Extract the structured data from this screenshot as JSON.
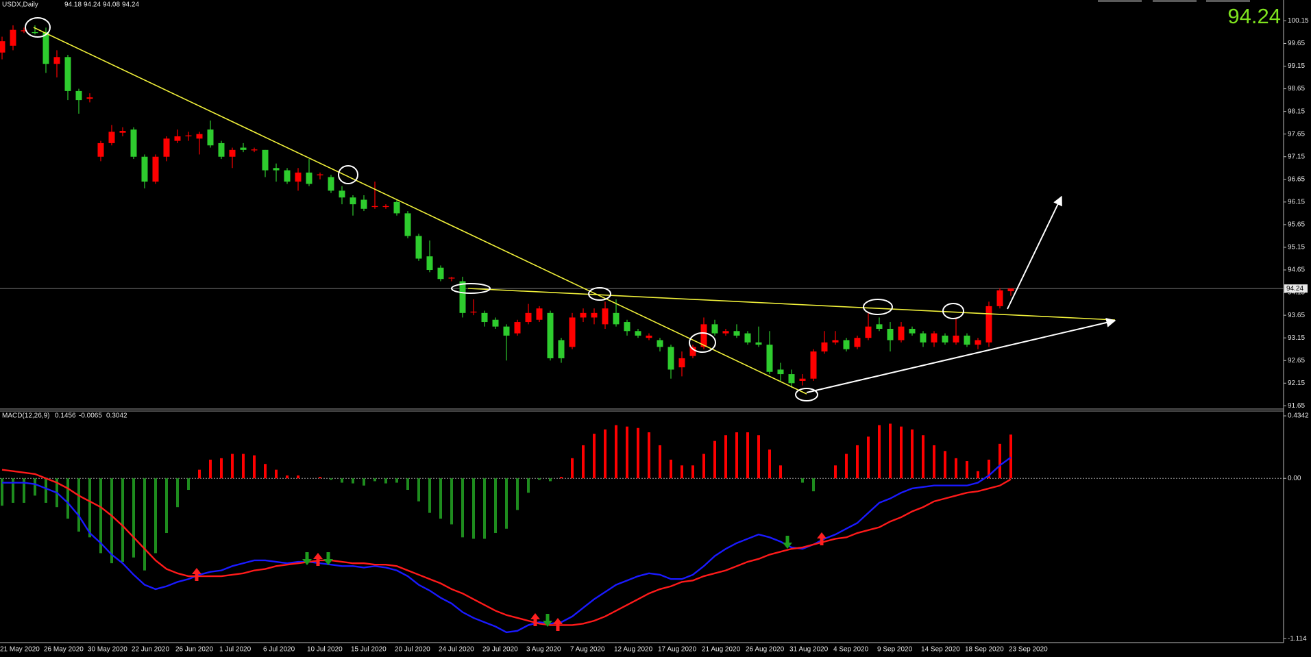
{
  "chart_data": [
    {
      "type": "candlestick",
      "title": "USDX,Daily",
      "categories": [
        "21 May 2020",
        null,
        null,
        null,
        "26 May 2020",
        null,
        null,
        null,
        "30 May 2020",
        null,
        null,
        null,
        "22 Jun 2020",
        null,
        null,
        null,
        "26 Jun 2020",
        null,
        null,
        null,
        "1 Jul 2020",
        null,
        null,
        null,
        "6 Jul 2020",
        null,
        null,
        null,
        "10 Jul 2020",
        null,
        null,
        null,
        "15 Jul 2020",
        null,
        null,
        null,
        "20 Jul 2020",
        null,
        null,
        null,
        "24 Jul 2020",
        null,
        null,
        null,
        "29 Jul 2020",
        null,
        null,
        null,
        "3 Aug 2020",
        null,
        null,
        null,
        "7 Aug 2020",
        null,
        null,
        null,
        "12 Aug 2020",
        null,
        null,
        null,
        "17 Aug 2020",
        null,
        null,
        null,
        "21 Aug 2020",
        null,
        null,
        null,
        "26 Aug 2020",
        null,
        null,
        null,
        "31 Aug 2020",
        null,
        null,
        null,
        "4 Sep 2020",
        null,
        null,
        null,
        "9 Sep 2020",
        null,
        null,
        null,
        "14 Sep 2020",
        null,
        null,
        null,
        "18 Sep 2020",
        null,
        null,
        null,
        "23 Sep 2020"
      ],
      "open": [
        99.45,
        99.6,
        99.92,
        99.9,
        99.9,
        99.2,
        99.35,
        98.6,
        98.43,
        97.15,
        97.45,
        97.68,
        97.75,
        97.15,
        96.6,
        97.15,
        97.5,
        97.6,
        97.55,
        97.75,
        97.45,
        97.15,
        97.35,
        97.29,
        97.3,
        96.9,
        96.85,
        96.6,
        96.8,
        96.74,
        96.7,
        96.4,
        96.25,
        96.2,
        96.04,
        96.04,
        96.15,
        95.9,
        95.4,
        94.95,
        94.7,
        94.46,
        94.4,
        93.71,
        93.7,
        93.55,
        93.4,
        93.25,
        93.5,
        93.55,
        93.7,
        93.1,
        92.95,
        93.6,
        93.6,
        93.45,
        93.7,
        93.5,
        93.3,
        93.15,
        93.1,
        92.95,
        92.5,
        92.75,
        92.95,
        93.45,
        93.25,
        93.3,
        93.25,
        93.05,
        93.0,
        92.45,
        92.35,
        92.2,
        92.25,
        92.85,
        93.05,
        93.1,
        92.95,
        93.15,
        93.45,
        93.35,
        93.1,
        93.35,
        93.25,
        93.05,
        93.2,
        93.05,
        93.2,
        93.0,
        93.05,
        93.85,
        94.18
      ],
      "high": [
        99.8,
        100.05,
        100.0,
        100.05,
        100.0,
        99.5,
        99.4,
        98.65,
        98.55,
        97.5,
        97.85,
        97.8,
        97.8,
        97.2,
        97.2,
        97.6,
        97.75,
        97.7,
        97.7,
        97.95,
        97.5,
        97.35,
        97.45,
        97.35,
        97.3,
        97.0,
        96.9,
        96.9,
        97.1,
        96.8,
        96.75,
        96.5,
        96.3,
        96.3,
        96.6,
        96.1,
        96.2,
        95.95,
        95.45,
        95.3,
        94.75,
        94.5,
        94.5,
        94.0,
        93.75,
        93.6,
        93.45,
        93.55,
        93.9,
        93.85,
        93.75,
        93.15,
        93.7,
        93.8,
        93.8,
        93.95,
        94.0,
        93.55,
        93.35,
        93.25,
        93.15,
        93.0,
        92.85,
        93.0,
        93.6,
        93.55,
        93.35,
        93.45,
        93.3,
        93.4,
        93.3,
        92.6,
        92.45,
        92.35,
        92.9,
        93.3,
        93.3,
        93.15,
        93.2,
        93.7,
        93.6,
        93.5,
        93.5,
        93.4,
        93.3,
        93.3,
        93.25,
        93.6,
        93.25,
        93.15,
        93.95,
        94.25,
        94.24
      ],
      "low": [
        99.3,
        99.5,
        99.88,
        99.85,
        99.0,
        98.9,
        98.4,
        98.1,
        98.35,
        97.05,
        97.4,
        97.6,
        97.1,
        96.45,
        96.55,
        97.05,
        97.45,
        97.5,
        97.2,
        97.35,
        97.1,
        96.9,
        97.25,
        97.25,
        96.7,
        96.6,
        96.55,
        96.4,
        96.5,
        96.65,
        96.35,
        96.1,
        95.85,
        95.95,
        96.0,
        96.0,
        95.85,
        95.35,
        94.85,
        94.6,
        94.4,
        94.4,
        93.6,
        93.65,
        93.4,
        93.35,
        92.65,
        93.2,
        93.45,
        93.5,
        92.65,
        92.6,
        92.9,
        93.5,
        93.45,
        93.35,
        93.4,
        93.2,
        93.15,
        93.1,
        92.85,
        92.25,
        92.3,
        92.7,
        92.9,
        93.2,
        93.2,
        93.15,
        93.0,
        92.95,
        92.35,
        92.2,
        92.05,
        92.1,
        92.2,
        92.8,
        93.0,
        92.85,
        92.9,
        93.1,
        93.3,
        92.85,
        93.05,
        93.2,
        92.95,
        92.95,
        93.0,
        93.0,
        92.95,
        92.9,
        92.95,
        93.8,
        94.08
      ],
      "close": [
        99.7,
        99.95,
        99.94,
        99.88,
        99.2,
        99.35,
        98.6,
        98.4,
        98.46,
        97.45,
        97.7,
        97.72,
        97.15,
        96.6,
        97.15,
        97.55,
        97.6,
        97.62,
        97.65,
        97.4,
        97.15,
        97.3,
        97.3,
        97.31,
        96.85,
        96.85,
        96.6,
        96.8,
        96.55,
        96.76,
        96.4,
        96.25,
        96.1,
        96.0,
        96.06,
        96.06,
        95.9,
        95.4,
        94.9,
        94.65,
        94.45,
        94.48,
        93.7,
        93.73,
        93.5,
        93.4,
        93.2,
        93.5,
        93.7,
        93.8,
        92.7,
        92.7,
        93.6,
        93.7,
        93.7,
        93.8,
        93.45,
        93.3,
        93.2,
        93.2,
        92.95,
        92.45,
        92.7,
        92.95,
        93.45,
        93.25,
        93.3,
        93.2,
        93.05,
        93.0,
        92.4,
        92.35,
        92.15,
        92.25,
        92.85,
        93.05,
        93.1,
        92.9,
        93.15,
        93.4,
        93.35,
        93.1,
        93.4,
        93.25,
        93.05,
        93.25,
        93.05,
        93.2,
        93.0,
        93.1,
        93.85,
        94.2,
        94.24
      ],
      "up_color": "#ff0000",
      "down_color": "#2ecc2e",
      "ylim": [
        91.61,
        100.61
      ],
      "yticks": [
        100.15,
        99.65,
        99.15,
        98.65,
        98.15,
        97.65,
        97.15,
        96.65,
        96.15,
        95.65,
        95.15,
        94.65,
        94.15,
        93.65,
        93.15,
        92.65,
        92.15,
        91.65
      ]
    },
    {
      "type": "macd",
      "title": "MACD(12,26,9)",
      "series": [
        {
          "type": "bar",
          "color": "#ff0000",
          "negative_color": "#1e8c1e",
          "values": [
            -0.19,
            -0.17,
            -0.17,
            -0.12,
            -0.17,
            -0.2,
            -0.28,
            -0.37,
            -0.41,
            -0.52,
            -0.59,
            -0.58,
            -0.55,
            -0.64,
            -0.52,
            -0.38,
            -0.2,
            -0.08,
            0.06,
            0.13,
            0.14,
            0.17,
            0.17,
            0.16,
            0.1,
            0.06,
            0.02,
            0.02,
            0,
            0.01,
            -0.01,
            -0.03,
            -0.035,
            -0.05,
            -0.02,
            -0.035,
            -0.03,
            -0.08,
            -0.16,
            -0.24,
            -0.28,
            -0.32,
            -0.41,
            -0.42,
            -0.42,
            -0.38,
            -0.35,
            -0.22,
            -0.1,
            -0.01,
            -0.02,
            0.01,
            0.14,
            0.23,
            0.31,
            0.34,
            0.37,
            0.36,
            0.35,
            0.32,
            0.23,
            0.13,
            0.09,
            0.09,
            0.17,
            0.26,
            0.3,
            0.32,
            0.32,
            0.3,
            0.2,
            0.09,
            0,
            -0.03,
            -0.09,
            0,
            0.09,
            0.17,
            0.23,
            0.29,
            0.37,
            0.38,
            0.36,
            0.34,
            0.3,
            0.23,
            0.19,
            0.14,
            0.12,
            0.05,
            0.13,
            0.24,
            0.3042
          ]
        },
        {
          "type": "line",
          "color": "#1a1aff",
          "values": [
            -0.03,
            -0.03,
            -0.03,
            -0.04,
            -0.07,
            -0.1,
            -0.17,
            -0.26,
            -0.38,
            -0.45,
            -0.53,
            -0.59,
            -0.67,
            -0.74,
            -0.77,
            -0.75,
            -0.72,
            -0.7,
            -0.67,
            -0.65,
            -0.64,
            -0.61,
            -0.59,
            -0.57,
            -0.57,
            -0.58,
            -0.59,
            -0.58,
            -0.58,
            -0.59,
            -0.6,
            -0.61,
            -0.61,
            -0.62,
            -0.61,
            -0.62,
            -0.64,
            -0.68,
            -0.74,
            -0.78,
            -0.83,
            -0.87,
            -0.93,
            -0.97,
            -1.0,
            -1.03,
            -1.07,
            -1.06,
            -1.02,
            -1.0,
            -1.01,
            -1.0,
            -0.96,
            -0.9,
            -0.84,
            -0.79,
            -0.74,
            -0.71,
            -0.68,
            -0.66,
            -0.67,
            -0.7,
            -0.7,
            -0.67,
            -0.61,
            -0.54,
            -0.49,
            -0.45,
            -0.42,
            -0.39,
            -0.41,
            -0.44,
            -0.48,
            -0.49,
            -0.46,
            -0.42,
            -0.39,
            -0.35,
            -0.31,
            -0.24,
            -0.17,
            -0.14,
            -0.1,
            -0.07,
            -0.06,
            -0.05,
            -0.05,
            -0.05,
            -0.05,
            -0.03,
            0.02,
            0.09,
            0.1456
          ]
        },
        {
          "type": "line",
          "color": "#ff1a1a",
          "values": [
            0.06,
            0.05,
            0.04,
            0.03,
            0,
            -0.03,
            -0.07,
            -0.12,
            -0.16,
            -0.2,
            -0.26,
            -0.33,
            -0.41,
            -0.49,
            -0.57,
            -0.63,
            -0.66,
            -0.68,
            -0.68,
            -0.68,
            -0.68,
            -0.67,
            -0.66,
            -0.64,
            -0.63,
            -0.61,
            -0.6,
            -0.59,
            -0.58,
            -0.57,
            -0.57,
            -0.58,
            -0.59,
            -0.59,
            -0.6,
            -0.6,
            -0.61,
            -0.64,
            -0.67,
            -0.7,
            -0.73,
            -0.77,
            -0.8,
            -0.84,
            -0.88,
            -0.92,
            -0.95,
            -0.97,
            -0.99,
            -1.01,
            -1.02,
            -1.02,
            -1.02,
            -1.01,
            -0.99,
            -0.96,
            -0.92,
            -0.88,
            -0.84,
            -0.8,
            -0.77,
            -0.75,
            -0.72,
            -0.71,
            -0.68,
            -0.66,
            -0.64,
            -0.61,
            -0.58,
            -0.56,
            -0.53,
            -0.51,
            -0.49,
            -0.48,
            -0.46,
            -0.44,
            -0.42,
            -0.41,
            -0.38,
            -0.36,
            -0.34,
            -0.3,
            -0.27,
            -0.23,
            -0.2,
            -0.16,
            -0.14,
            -0.12,
            -0.1,
            -0.09,
            -0.07,
            -0.05,
            -0.0065
          ]
        }
      ],
      "ylim": [
        -1.137,
        0.463
      ],
      "yticks": [
        0.4342,
        {
          "value": 0,
          "label": "0.00"
        },
        -1.114
      ]
    }
  ]
}
